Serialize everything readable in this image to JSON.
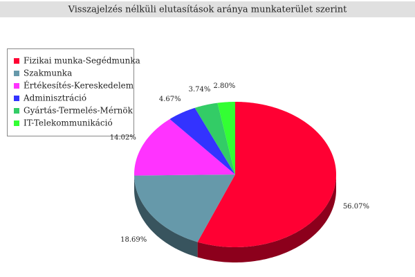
{
  "chart_data": {
    "type": "pie3d",
    "title": "Visszajelzés nélküli elutasítások aránya munkaterület szerint",
    "categories": [
      "Fizikai munka-Segédmunka",
      "Szakmunka",
      "Értékesítés-Kereskedelem",
      "Adminisztráció",
      "Gyártás-Termelés-Mérnök",
      "IT-Telekommunikáció"
    ],
    "values": [
      56.07,
      18.69,
      14.02,
      4.67,
      3.74,
      2.8
    ],
    "value_labels": [
      "56.07%",
      "18.69%",
      "14.02%",
      "4.67%",
      "3.74%",
      "2.80%"
    ],
    "colors": [
      "#ff0033",
      "#6699aa",
      "#ff33ff",
      "#3333ff",
      "#33cc66",
      "#33ff33"
    ],
    "legend": "top-left"
  }
}
